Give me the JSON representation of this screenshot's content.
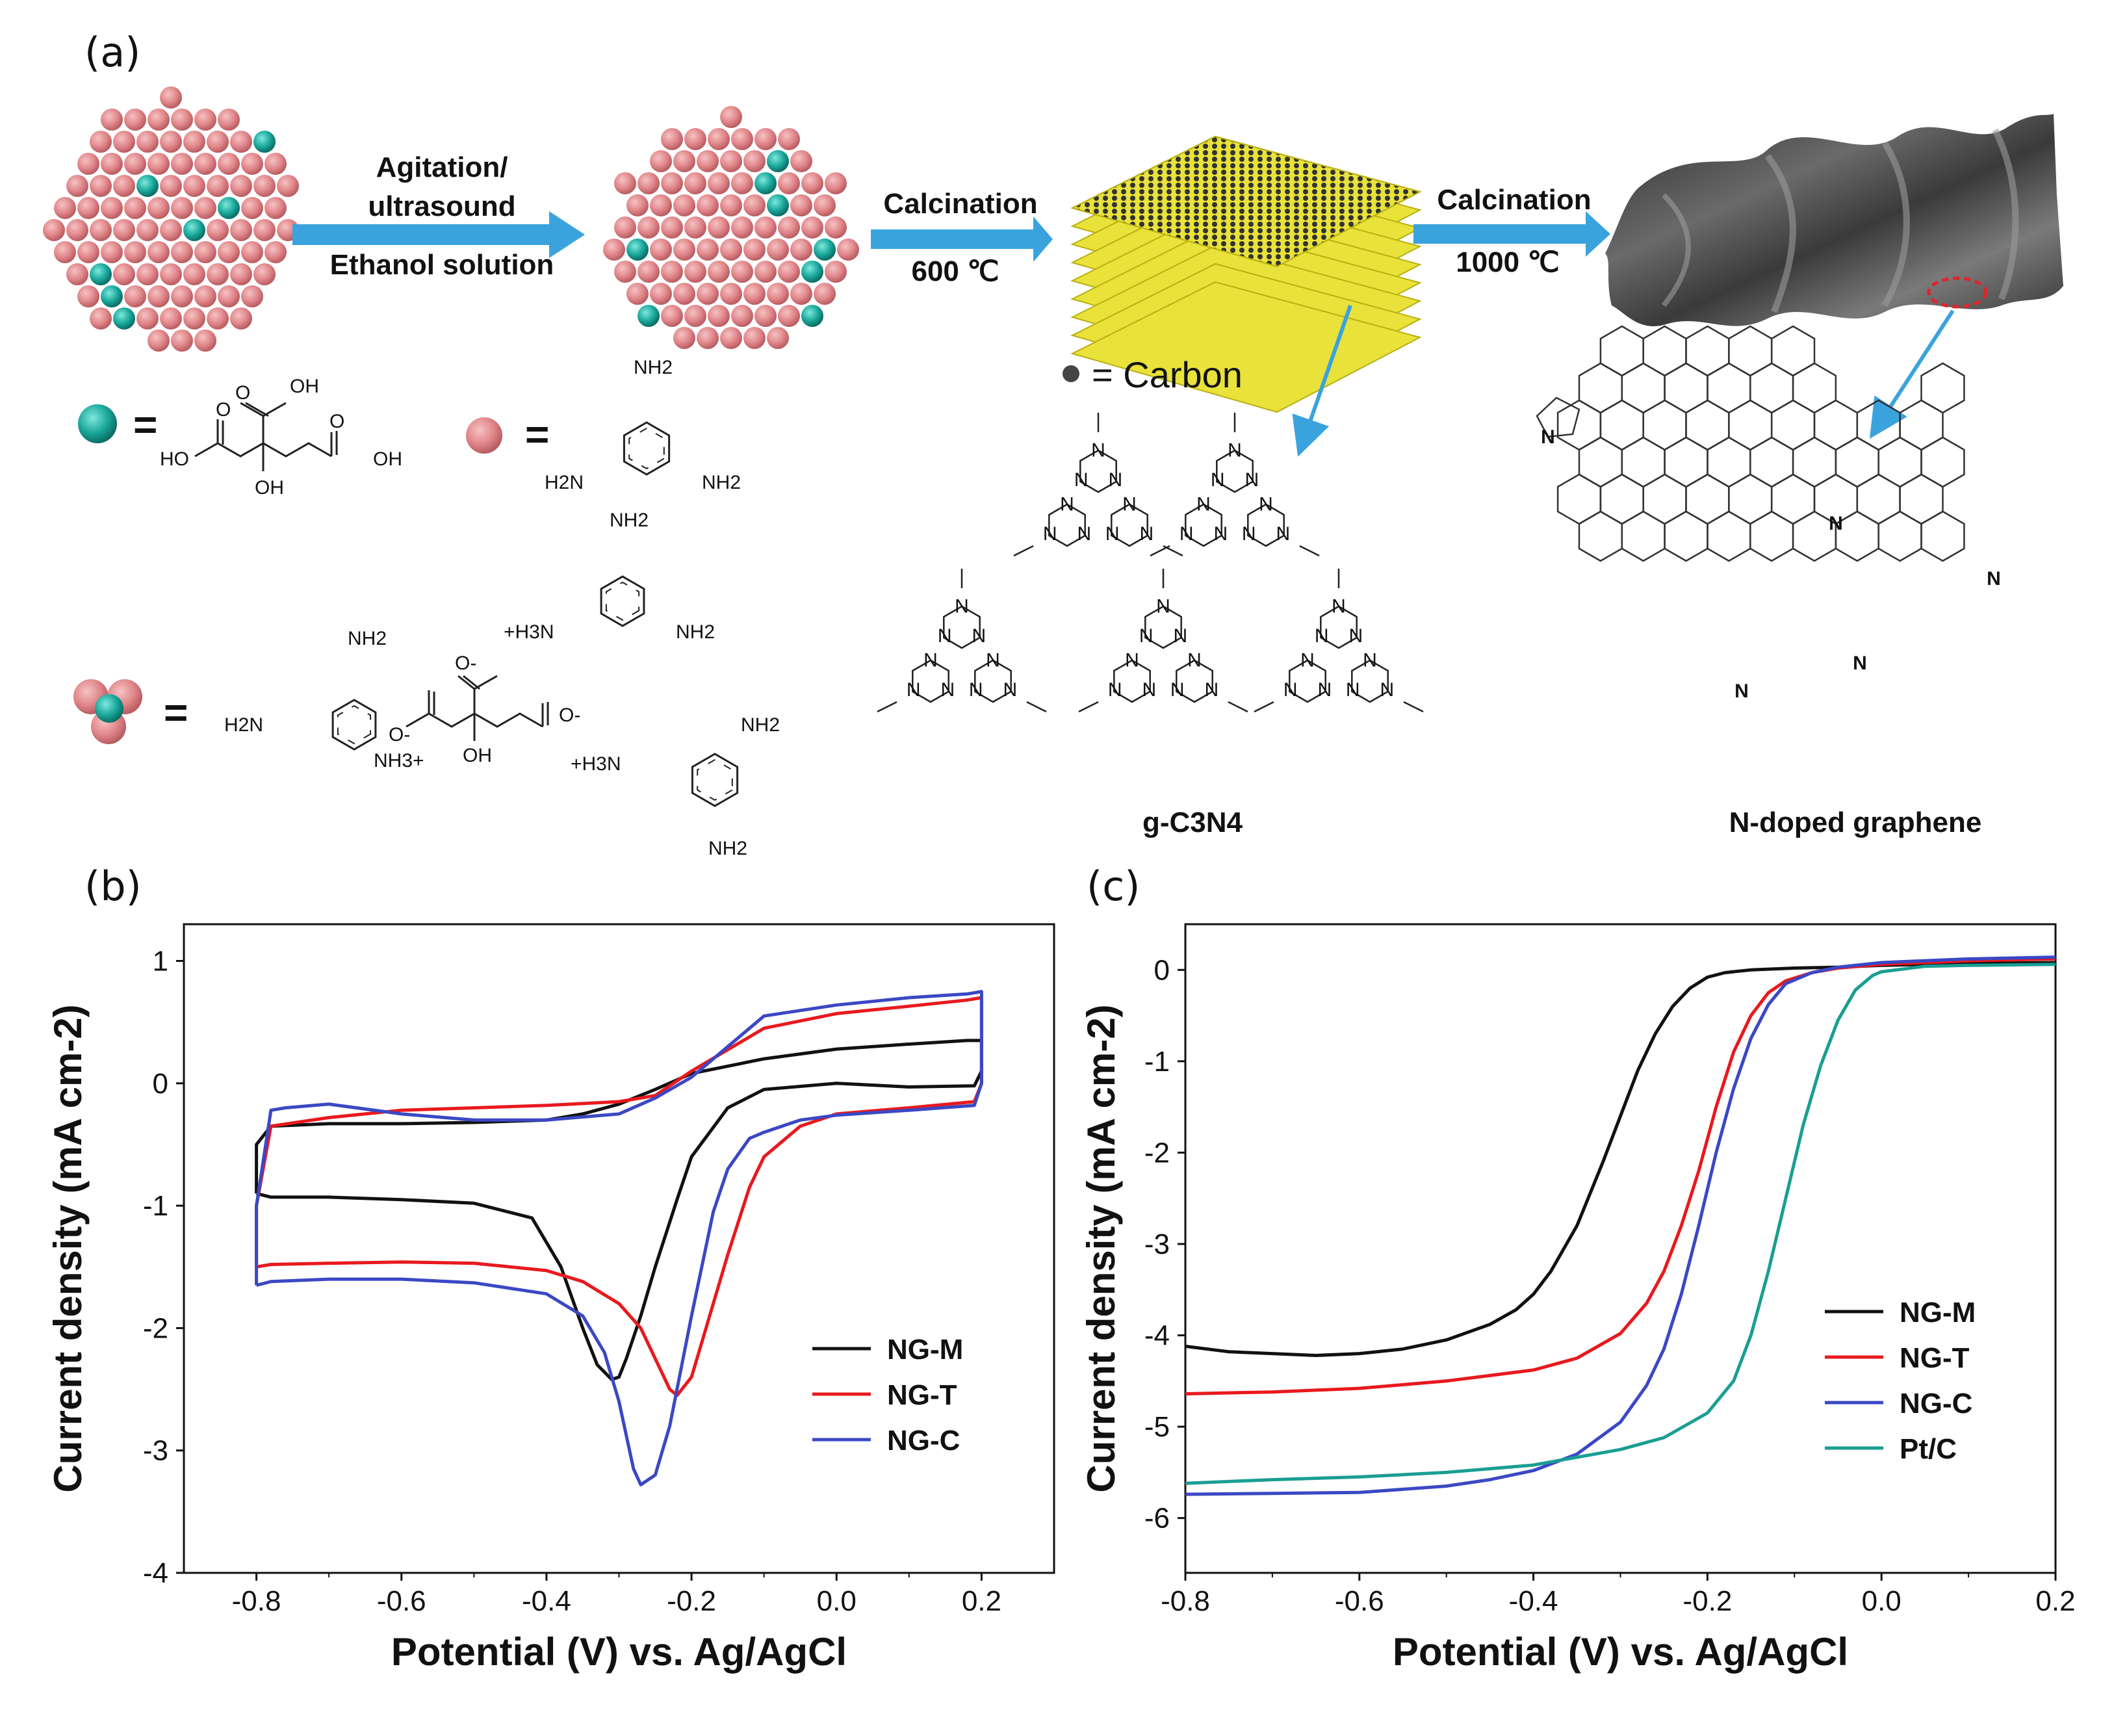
{
  "panels": {
    "a": {
      "label": "(a)",
      "arrow1": {
        "top": "Agitation/",
        "middle": "ultrasound",
        "bottom": "Ethanol solution"
      },
      "arrow2": {
        "top": "Calcination",
        "bottom": "600 ℃"
      },
      "arrow3": {
        "top": "Calcination",
        "bottom": "1000 ℃"
      },
      "carbon_legend": "= Carbon",
      "equals": "=",
      "chem": {
        "citric": {
          "oh_top": "OH",
          "ho_left": "HO",
          "oh_right": "OH",
          "oh_bottom": "OH",
          "o1": "O",
          "o2": "O",
          "o3": "O"
        },
        "melamine": {
          "nh2_top": "NH2",
          "h2n_left": "H2N",
          "nh2_right": "NH2",
          "n": "N"
        },
        "complex": {
          "h3n_plus_1": "+H3N",
          "nh3_plus": "NH3+",
          "h3n_plus_2": "+H3N",
          "o_minus": "O-",
          "oh": "OH",
          "h2n": "H2N",
          "nh2": "NH2"
        }
      },
      "caption_gc3n4": "g-C3N4",
      "caption_ng": "N-doped graphene",
      "n_atom": "N"
    },
    "b": {
      "label": "(b)"
    },
    "c": {
      "label": "(c)"
    }
  },
  "colors": {
    "pink": "#e0868a",
    "teal": "#1aa79a",
    "arrow": "#3aa3de",
    "yellow": "#e8e23a",
    "ng_m": "#111111",
    "ng_t": "#e8191e",
    "ng_c": "#3b48c4",
    "ptc": "#1a9e93",
    "n_blue": "#2233aa",
    "n_red": "#dd2222",
    "n_purple": "#aa22aa"
  },
  "chart_data": [
    {
      "panel": "b",
      "type": "line",
      "xlabel": "Potential (V) vs. Ag/AgCl",
      "ylabel": "Current density (mA cm-2)",
      "xlim": [
        -0.9,
        0.3
      ],
      "ylim": [
        -4,
        1.3
      ],
      "xticks": [
        -0.8,
        -0.6,
        -0.4,
        -0.2,
        0.0,
        0.2
      ],
      "xtick_labels": [
        "-0.8",
        "-0.6",
        "-0.4",
        "-0.2",
        "0.0",
        "0.2"
      ],
      "yticks": [
        -4,
        -3,
        -2,
        -1,
        0,
        1
      ],
      "ytick_labels": [
        "-4",
        "-3",
        "-2",
        "-1",
        "0",
        "1"
      ],
      "legend_position": "lower-right",
      "series": [
        {
          "name": "NG-M",
          "color": "#111111",
          "x": [
            -0.8,
            -0.78,
            -0.7,
            -0.6,
            -0.5,
            -0.42,
            -0.38,
            -0.35,
            -0.33,
            -0.31,
            -0.3,
            -0.29,
            -0.27,
            -0.25,
            -0.22,
            -0.2,
            -0.15,
            -0.1,
            0.0,
            0.1,
            0.19,
            0.2,
            0.2,
            0.18,
            0.1,
            0.0,
            -0.1,
            -0.2,
            -0.25,
            -0.3,
            -0.35,
            -0.4,
            -0.5,
            -0.6,
            -0.7,
            -0.78,
            -0.8,
            -0.8
          ],
          "y": [
            -0.9,
            -0.93,
            -0.93,
            -0.95,
            -0.98,
            -1.1,
            -1.5,
            -2.0,
            -2.3,
            -2.42,
            -2.4,
            -2.25,
            -1.9,
            -1.5,
            -0.95,
            -0.6,
            -0.2,
            -0.05,
            0.0,
            -0.03,
            -0.02,
            0.1,
            0.35,
            0.35,
            0.32,
            0.28,
            0.2,
            0.08,
            -0.05,
            -0.17,
            -0.25,
            -0.3,
            -0.32,
            -0.33,
            -0.33,
            -0.35,
            -0.5,
            -0.9
          ]
        },
        {
          "name": "NG-T",
          "color": "#e8191e",
          "x": [
            -0.8,
            -0.78,
            -0.7,
            -0.6,
            -0.5,
            -0.4,
            -0.35,
            -0.3,
            -0.27,
            -0.25,
            -0.23,
            -0.22,
            -0.2,
            -0.18,
            -0.15,
            -0.12,
            -0.1,
            -0.05,
            0.0,
            0.1,
            0.19,
            0.2,
            0.2,
            0.18,
            0.1,
            0.0,
            -0.1,
            -0.2,
            -0.25,
            -0.3,
            -0.4,
            -0.5,
            -0.6,
            -0.7,
            -0.78,
            -0.8,
            -0.8
          ],
          "y": [
            -1.5,
            -1.48,
            -1.47,
            -1.46,
            -1.47,
            -1.53,
            -1.62,
            -1.8,
            -2.0,
            -2.25,
            -2.5,
            -2.55,
            -2.4,
            -2.0,
            -1.4,
            -0.85,
            -0.6,
            -0.35,
            -0.25,
            -0.2,
            -0.15,
            0.0,
            0.7,
            0.68,
            0.63,
            0.57,
            0.45,
            0.1,
            -0.1,
            -0.15,
            -0.18,
            -0.2,
            -0.22,
            -0.28,
            -0.35,
            -1.0,
            -1.5
          ]
        },
        {
          "name": "NG-C",
          "color": "#3b48c4",
          "x": [
            -0.8,
            -0.78,
            -0.7,
            -0.6,
            -0.5,
            -0.4,
            -0.35,
            -0.32,
            -0.3,
            -0.28,
            -0.27,
            -0.25,
            -0.23,
            -0.2,
            -0.17,
            -0.15,
            -0.12,
            -0.1,
            -0.05,
            0.0,
            0.1,
            0.19,
            0.2,
            0.2,
            0.18,
            0.1,
            0.0,
            -0.1,
            -0.15,
            -0.2,
            -0.25,
            -0.3,
            -0.4,
            -0.5,
            -0.6,
            -0.7,
            -0.76,
            -0.78,
            -0.8,
            -0.8
          ],
          "y": [
            -1.65,
            -1.62,
            -1.6,
            -1.6,
            -1.63,
            -1.72,
            -1.9,
            -2.2,
            -2.6,
            -3.15,
            -3.28,
            -3.2,
            -2.8,
            -1.9,
            -1.05,
            -0.7,
            -0.45,
            -0.4,
            -0.3,
            -0.26,
            -0.22,
            -0.18,
            0.0,
            0.75,
            0.73,
            0.7,
            0.64,
            0.55,
            0.3,
            0.05,
            -0.12,
            -0.25,
            -0.3,
            -0.3,
            -0.25,
            -0.17,
            -0.2,
            -0.22,
            -1.0,
            -1.65
          ]
        }
      ]
    },
    {
      "panel": "c",
      "type": "line",
      "xlabel": "Potential (V) vs. Ag/AgCl",
      "ylabel": "Current density (mA cm-2)",
      "xlim": [
        -0.8,
        0.2
      ],
      "ylim": [
        -6.6,
        0.5
      ],
      "xticks": [
        -0.8,
        -0.6,
        -0.4,
        -0.2,
        0.0,
        0.2
      ],
      "xtick_labels": [
        "-0.8",
        "-0.6",
        "-0.4",
        "-0.2",
        "0.0",
        "0.2"
      ],
      "yticks": [
        -6,
        -5,
        -4,
        -3,
        -2,
        -1,
        0
      ],
      "ytick_labels": [
        "-6",
        "-5",
        "-4",
        "-3",
        "-2",
        "-1",
        "0"
      ],
      "legend_position": "lower-right",
      "series": [
        {
          "name": "NG-M",
          "color": "#111111",
          "x": [
            -0.8,
            -0.75,
            -0.7,
            -0.65,
            -0.6,
            -0.55,
            -0.5,
            -0.45,
            -0.42,
            -0.4,
            -0.38,
            -0.35,
            -0.32,
            -0.3,
            -0.28,
            -0.26,
            -0.24,
            -0.22,
            -0.2,
            -0.18,
            -0.15,
            -0.1,
            -0.05,
            0.0,
            0.05,
            0.1,
            0.2
          ],
          "y": [
            -4.12,
            -4.18,
            -4.2,
            -4.22,
            -4.2,
            -4.15,
            -4.05,
            -3.88,
            -3.72,
            -3.55,
            -3.3,
            -2.8,
            -2.1,
            -1.6,
            -1.1,
            -0.7,
            -0.4,
            -0.2,
            -0.08,
            -0.03,
            0.0,
            0.02,
            0.03,
            0.05,
            0.06,
            0.07,
            0.08
          ]
        },
        {
          "name": "NG-T",
          "color": "#e8191e",
          "x": [
            -0.8,
            -0.7,
            -0.6,
            -0.5,
            -0.4,
            -0.35,
            -0.3,
            -0.27,
            -0.25,
            -0.23,
            -0.21,
            -0.19,
            -0.17,
            -0.15,
            -0.13,
            -0.11,
            -0.08,
            -0.05,
            0.0,
            0.1,
            0.2
          ],
          "y": [
            -4.64,
            -4.62,
            -4.58,
            -4.5,
            -4.38,
            -4.25,
            -3.98,
            -3.65,
            -3.3,
            -2.8,
            -2.2,
            -1.5,
            -0.9,
            -0.5,
            -0.25,
            -0.12,
            -0.03,
            0.02,
            0.06,
            0.1,
            0.12
          ]
        },
        {
          "name": "NG-C",
          "color": "#3b48c4",
          "x": [
            -0.8,
            -0.7,
            -0.6,
            -0.5,
            -0.45,
            -0.4,
            -0.35,
            -0.3,
            -0.27,
            -0.25,
            -0.23,
            -0.21,
            -0.19,
            -0.17,
            -0.15,
            -0.13,
            -0.11,
            -0.08,
            -0.05,
            0.0,
            0.1,
            0.2
          ],
          "y": [
            -5.74,
            -5.73,
            -5.72,
            -5.65,
            -5.58,
            -5.48,
            -5.3,
            -4.95,
            -4.55,
            -4.15,
            -3.55,
            -2.8,
            -2.0,
            -1.3,
            -0.75,
            -0.38,
            -0.15,
            -0.03,
            0.03,
            0.08,
            0.12,
            0.14
          ]
        },
        {
          "name": "Pt/C",
          "color": "#1a9e93",
          "x": [
            -0.8,
            -0.7,
            -0.6,
            -0.5,
            -0.4,
            -0.3,
            -0.25,
            -0.2,
            -0.17,
            -0.15,
            -0.13,
            -0.11,
            -0.09,
            -0.07,
            -0.05,
            -0.03,
            -0.01,
            0.0,
            0.05,
            0.1,
            0.2
          ],
          "y": [
            -5.62,
            -5.58,
            -5.55,
            -5.5,
            -5.42,
            -5.25,
            -5.12,
            -4.85,
            -4.5,
            -4.0,
            -3.3,
            -2.5,
            -1.7,
            -1.05,
            -0.55,
            -0.22,
            -0.06,
            -0.02,
            0.04,
            0.05,
            0.06
          ]
        }
      ]
    }
  ]
}
